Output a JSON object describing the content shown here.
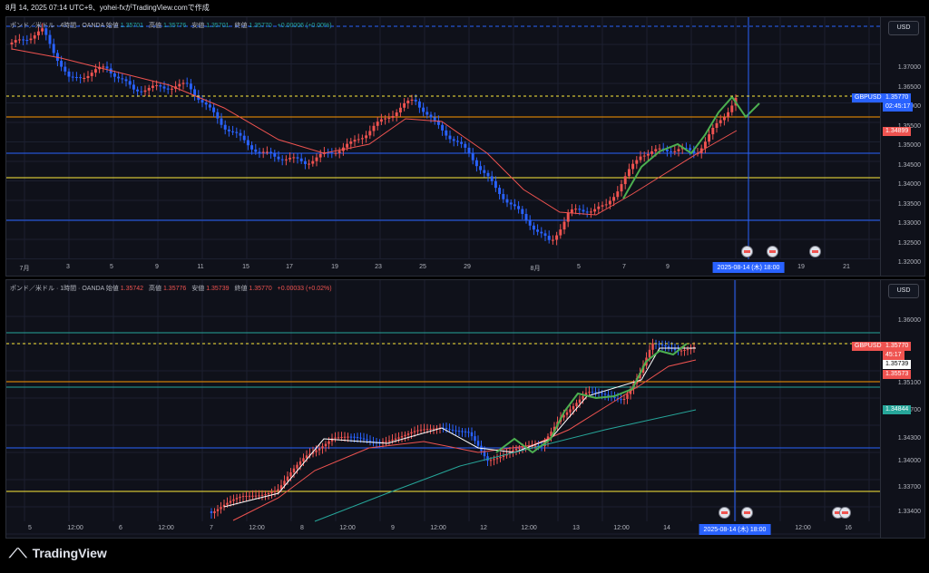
{
  "topbar": "8月 14, 2025 07:14 UTC+9、yohei-fxがTradingView.comで作成",
  "chart1": {
    "legend": {
      "symbol": "ポンド／米ドル · 4時間 · OANDA",
      "open_label": "始値",
      "open": "1.35701",
      "high_label": "高値",
      "high": "1.35776",
      "low_label": "安値",
      "low": "1.35701",
      "close_label": "終値",
      "close": "1.35770",
      "change": "+0.00006 (+0.00%)"
    },
    "currency": "USD",
    "price_ticks": [
      "1.37000",
      "1.36500",
      "1.36000",
      "1.35500",
      "1.35000",
      "1.34500",
      "1.34000",
      "1.33500",
      "1.33000",
      "1.32500",
      "1.32000"
    ],
    "symbol_tag": "GBPUSD",
    "price_tag": "1.35770",
    "countdown": "02:45:17",
    "red_tag": "1.34899",
    "x_ticks": [
      "7月",
      "3",
      "5",
      "9",
      "11",
      "15",
      "17",
      "19",
      "23",
      "25",
      "29",
      "8月",
      "5",
      "7",
      "9",
      "19",
      "21"
    ],
    "date_box": "2025-08-14 (木)   18:00"
  },
  "chart2": {
    "legend": {
      "symbol": "ポンド／米ドル · 1時間 · OANDA",
      "open_label": "始値",
      "open": "1.35742",
      "high_label": "高値",
      "high": "1.35776",
      "low_label": "安値",
      "low": "1.35739",
      "close_label": "終値",
      "close": "1.35770",
      "change": "+0.00033 (+0.02%)"
    },
    "currency": "USD",
    "price_ticks": [
      "1.36000",
      "1.35100",
      "1.34700",
      "1.34300",
      "1.34000",
      "1.33700",
      "1.33400"
    ],
    "symbol_tag": "GBPUSD",
    "price_tag": "1.35770",
    "countdown": "45:17",
    "white_tag": "1.35739",
    "red_tag": "1.35573",
    "teal_tag": "1.34844",
    "x_ticks": [
      "5",
      "12:00",
      "6",
      "12:00",
      "7",
      "12:00",
      "8",
      "12:00",
      "9",
      "12:00",
      "12",
      "12:00",
      "13",
      "12:00",
      "14",
      "12:00",
      "16"
    ],
    "date_box": "2025-08-14 (木)   18:00"
  },
  "footer": "TradingView",
  "colors": {
    "up": "#ef5350",
    "down": "#2962ff",
    "ma": "#ef5350",
    "green": "#4caf50",
    "teal": "#26a69a",
    "orange": "#ff9800",
    "yellow": "#ffeb3b",
    "blue": "#2962ff"
  }
}
